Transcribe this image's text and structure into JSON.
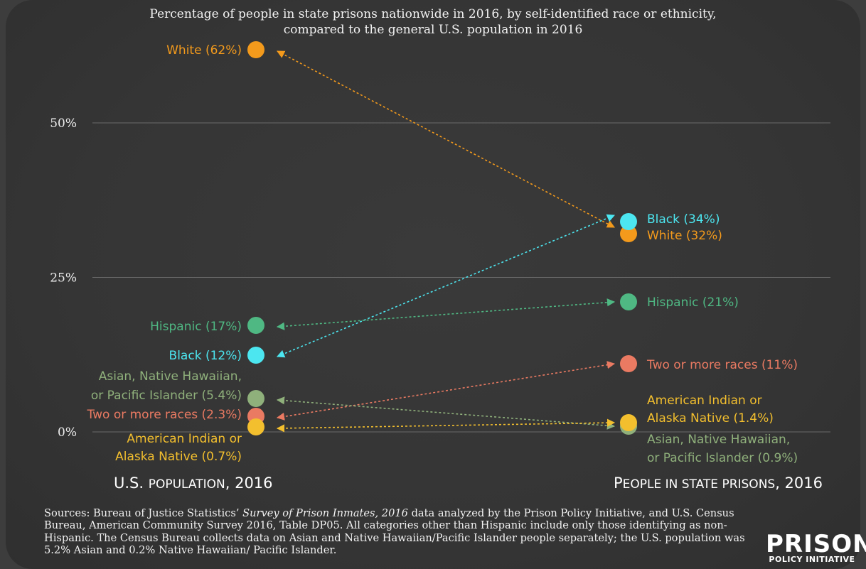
{
  "chart_data": {
    "type": "slope",
    "title_lines": [
      "Percentage of people in state prisons nationwide in 2016, by self-identified race or ethnicity,",
      "compared to the general U.S. population in 2016"
    ],
    "y_ticks": [
      {
        "value": 50,
        "label": "50%"
      },
      {
        "value": 25,
        "label": "25%"
      },
      {
        "value": 0,
        "label": "0%"
      }
    ],
    "ylim": [
      0,
      62
    ],
    "left_axis_title_parts": [
      {
        "text": "U.S. ",
        "cap": false
      },
      {
        "text": "population",
        "cap": true
      },
      {
        "text": ", 2016",
        "cap": false
      }
    ],
    "right_axis_title_parts": [
      {
        "text": "P",
        "cap": false
      },
      {
        "text": "eople in state prisons",
        "cap": true
      },
      {
        "text": ", 2016",
        "cap": false
      }
    ],
    "series": [
      {
        "name": "White",
        "color": "#f39a1c",
        "us": 62,
        "prison": 32,
        "us_label": [
          "White (62%)"
        ],
        "prison_label": [
          "White (32%)"
        ]
      },
      {
        "name": "Black",
        "color": "#4ce6f0",
        "us": 12,
        "prison": 34,
        "us_label": [
          "Black (12%)"
        ],
        "prison_label": [
          "Black (34%)"
        ]
      },
      {
        "name": "Hispanic",
        "color": "#4fb883",
        "us": 17,
        "prison": 21,
        "us_label": [
          "Hispanic (17%)"
        ],
        "prison_label": [
          "Hispanic (21%)"
        ]
      },
      {
        "name": "Two or more races",
        "color": "#ea7a62",
        "us": 2.3,
        "prison": 11,
        "us_label": [
          "Two or more races (2.3%)"
        ],
        "prison_label": [
          "Two or more races (11%)"
        ]
      },
      {
        "name": "Asian, Native Hawaiian, or Pacific Islander",
        "color": "#8fb07b",
        "us": 5.4,
        "prison": 0.9,
        "us_label": [
          "Asian, Native Hawaiian,",
          "or Pacific Islander (5.4%)"
        ],
        "prison_label": [
          "Asian, Native Hawaiian,",
          "or Pacific Islander (0.9%)"
        ]
      },
      {
        "name": "American Indian or Alaska Native",
        "color": "#f3bf2e",
        "us": 0.7,
        "prison": 1.4,
        "us_label": [
          "American Indian or",
          "Alaska Native (0.7%)"
        ],
        "prison_label": [
          "American Indian or",
          "Alaska Native (1.4%)"
        ]
      }
    ]
  },
  "sources": {
    "prefix": "Sources: Bureau of Justice Statistics’ ",
    "italic": "Survey of Prison Inmates, 2016",
    "suffix": " data analyzed by the Prison Policy Initiative, and U.S. Census Bureau, American Community Survey 2016, Table DP05. All categories other than Hispanic include only those identifying as non-Hispanic. The Census Bureau collects data on Asian and Native Hawaiian/Pacific Islander people separately; the U.S. population was 5.2% Asian and 0.2% Native Hawaiian/ Pacific Islander."
  },
  "logo": {
    "big": "PRISON",
    "small": "POLICY INITIATIVE"
  }
}
